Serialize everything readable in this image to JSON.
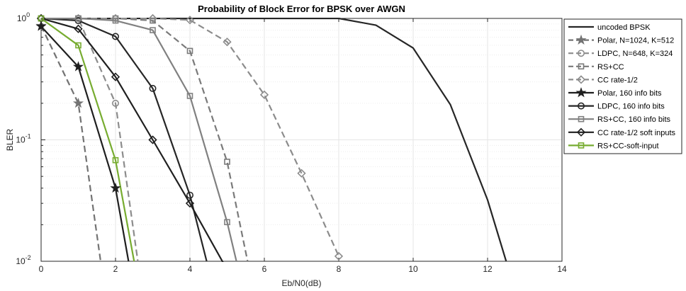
{
  "chart_data": {
    "type": "line",
    "title": "Probability of Block Error for BPSK over AWGN",
    "xlabel": "Eb/N0(dB)",
    "ylabel": "BLER",
    "xlim": [
      0,
      14
    ],
    "ylim": [
      0.01,
      1
    ],
    "yscale": "log",
    "grid": "on, y-axis minor grid (dotted)",
    "legend_position": "right",
    "x_ticks": [
      "0",
      "2",
      "4",
      "6",
      "8",
      "10",
      "12",
      "14"
    ],
    "y_ticks": [
      {
        "base": "10",
        "exp": "0"
      },
      {
        "base": "10",
        "exp": "-1"
      },
      {
        "base": "10",
        "exp": "-2"
      }
    ],
    "series": [
      {
        "name": "uncoded BPSK",
        "color": "#262626",
        "dash": "solid",
        "marker": "none",
        "x": [
          0,
          1,
          2,
          3,
          4,
          5,
          6,
          7,
          8,
          9,
          10,
          11,
          12,
          12.5
        ],
        "y": [
          1,
          1,
          1,
          1,
          1,
          1,
          1,
          1,
          1,
          0.88,
          0.57,
          0.195,
          0.032,
          0.01
        ]
      },
      {
        "name": "Polar, N=1024, K=512",
        "color": "#737373",
        "dash": "dashed",
        "marker": "star-filled",
        "x": [
          0,
          1,
          1.6
        ],
        "y": [
          0.87,
          0.2,
          0.01
        ]
      },
      {
        "name": "LDPC, N=648, K=324",
        "color": "#8c8c8c",
        "dash": "dashed",
        "marker": "circle-open",
        "x": [
          0,
          1,
          2,
          2.6
        ],
        "y": [
          1,
          1,
          0.2,
          0.01
        ]
      },
      {
        "name": "RS+CC",
        "color": "#7a7a7a",
        "dash": "dashed",
        "marker": "square-open",
        "x": [
          0,
          1,
          2,
          3,
          4,
          5,
          5.55
        ],
        "y": [
          1,
          1,
          1,
          0.96,
          0.54,
          0.066,
          0.01
        ]
      },
      {
        "name": "CC rate-1/2",
        "color": "#8c8c8c",
        "dash": "dashed",
        "marker": "diamond-open",
        "x": [
          0,
          1,
          2,
          3,
          4,
          5,
          6,
          7,
          8
        ],
        "y": [
          1,
          1,
          1,
          1,
          0.97,
          0.64,
          0.235,
          0.053,
          0.011
        ]
      },
      {
        "name": "Polar, 160 info bits",
        "color": "#1f1f1f",
        "dash": "solid",
        "marker": "star-filled",
        "x": [
          0,
          1,
          2,
          2.35
        ],
        "y": [
          0.86,
          0.4,
          0.04,
          0.01
        ]
      },
      {
        "name": "LDPC, 160 info bits",
        "color": "#262626",
        "dash": "solid",
        "marker": "circle-open",
        "x": [
          0,
          1,
          2,
          3,
          4,
          4.45
        ],
        "y": [
          1,
          0.96,
          0.71,
          0.265,
          0.035,
          0.01
        ]
      },
      {
        "name": "RS+CC, 160 info bits",
        "color": "#808080",
        "dash": "solid",
        "marker": "square-open",
        "x": [
          0,
          1,
          2,
          3,
          4,
          5,
          5.25
        ],
        "y": [
          1,
          1,
          0.96,
          0.8,
          0.23,
          0.021,
          0.01
        ]
      },
      {
        "name": "CC rate-1/2 soft inputs",
        "color": "#1f1f1f",
        "dash": "solid",
        "marker": "diamond-open",
        "x": [
          0,
          1,
          2,
          3,
          4,
          5
        ],
        "y": [
          1,
          0.82,
          0.33,
          0.1,
          0.03,
          0.0085
        ]
      },
      {
        "name": "RS+CC-soft-input",
        "color": "#77ac30",
        "dash": "solid",
        "marker": "square-open",
        "x": [
          0,
          1,
          2,
          2.5
        ],
        "y": [
          1,
          0.6,
          0.068,
          0.01
        ]
      }
    ]
  }
}
